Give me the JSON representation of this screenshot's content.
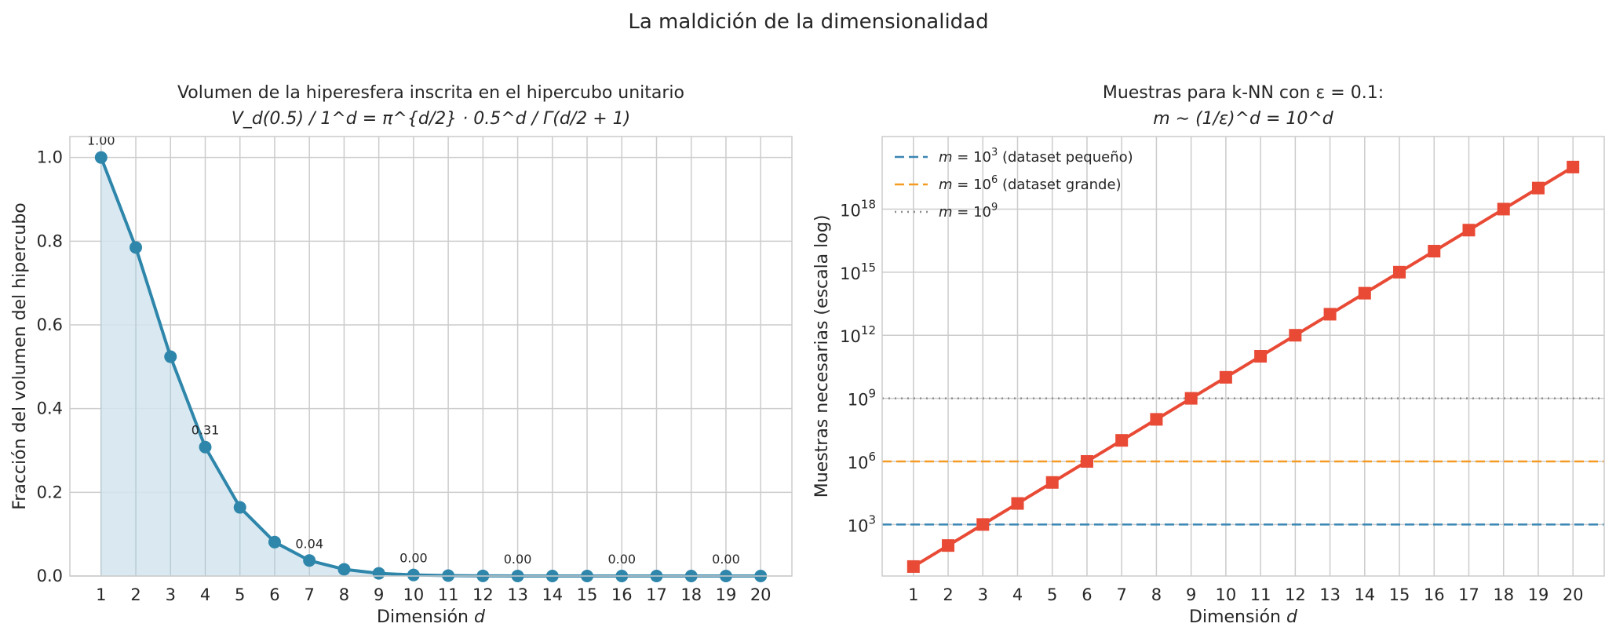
{
  "suptitle": "La maldición de la dimensionalidad",
  "chart_data": [
    {
      "type": "line",
      "title_line1": "Volumen de la hiperesfera inscrita en el hipercubo unitario",
      "title_line2": "V_d(0.5) / 1^d = π^{d/2} · 0.5^d / Γ(d/2 + 1)",
      "xlabel_text": "Dimensión",
      "xlabel_var": "d",
      "ylabel": "Fracción del volumen del hipercubo",
      "x": [
        1,
        2,
        3,
        4,
        5,
        6,
        7,
        8,
        9,
        10,
        11,
        12,
        13,
        14,
        15,
        16,
        17,
        18,
        19,
        20
      ],
      "y": [
        1.0,
        0.785,
        0.524,
        0.308,
        0.164,
        0.081,
        0.037,
        0.016,
        0.0064,
        0.0025,
        0.0009,
        0.0003,
        0.0001,
        4e-05,
        1e-05,
        4e-06,
        1e-06,
        3e-07,
        1e-07,
        2e-08
      ],
      "xlim": [
        0.1,
        20.9
      ],
      "ylim": [
        0,
        1.05
      ],
      "yticks": [
        "0.0",
        "0.2",
        "0.4",
        "0.6",
        "0.8",
        "1.0"
      ],
      "xticks": [
        "1",
        "2",
        "3",
        "4",
        "5",
        "6",
        "7",
        "8",
        "9",
        "10",
        "11",
        "12",
        "13",
        "14",
        "15",
        "16",
        "17",
        "18",
        "19",
        "20"
      ],
      "data_labels": [
        {
          "x": 1,
          "text": "1.00"
        },
        {
          "x": 4,
          "text": "0.31"
        },
        {
          "x": 7,
          "text": "0.04"
        },
        {
          "x": 10,
          "text": "0.00"
        },
        {
          "x": 13,
          "text": "0.00"
        },
        {
          "x": 16,
          "text": "0.00"
        },
        {
          "x": 19,
          "text": "0.00"
        }
      ],
      "fill_under": true,
      "grid": true,
      "color": "#2e86ab",
      "fill_color": "#d4e5ee"
    },
    {
      "type": "line",
      "title_line1": "Muestras para k-NN con ε = 0.1:",
      "title_line2": "m ∼ (1/ε)^d = 10^d",
      "xlabel_text": "Dimensión",
      "xlabel_var": "d",
      "ylabel": "Muestras necesarias (escala log)",
      "yscale": "log",
      "x": [
        1,
        2,
        3,
        4,
        5,
        6,
        7,
        8,
        9,
        10,
        11,
        12,
        13,
        14,
        15,
        16,
        17,
        18,
        19,
        20
      ],
      "y_log10": [
        1,
        2,
        3,
        4,
        5,
        6,
        7,
        8,
        9,
        10,
        11,
        12,
        13,
        14,
        15,
        16,
        17,
        18,
        19,
        20
      ],
      "xlim": [
        0.1,
        20.9
      ],
      "ylim_log10": [
        0.55,
        21.45
      ],
      "yticks_exp": [
        "3",
        "6",
        "9",
        "12",
        "15",
        "18"
      ],
      "xticks": [
        "1",
        "2",
        "3",
        "4",
        "5",
        "6",
        "7",
        "8",
        "9",
        "10",
        "11",
        "12",
        "13",
        "14",
        "15",
        "16",
        "17",
        "18",
        "19",
        "20"
      ],
      "color": "#e84a35",
      "grid": true,
      "legend_position": "top-left",
      "hlines": [
        {
          "y_log10": 3,
          "label_var": "m = 10",
          "label_exp": "3",
          "label_desc": "(dataset pequeño)",
          "color": "#3a86b4",
          "style": "dashed"
        },
        {
          "y_log10": 6,
          "label_var": "m = 10",
          "label_exp": "6",
          "label_desc": "(dataset grande)",
          "color": "#f59a23",
          "style": "dashed"
        },
        {
          "y_log10": 9,
          "label_var": "m = 10",
          "label_exp": "9",
          "label_desc": "",
          "color": "#8e8e8e",
          "style": "dotted"
        }
      ]
    }
  ]
}
